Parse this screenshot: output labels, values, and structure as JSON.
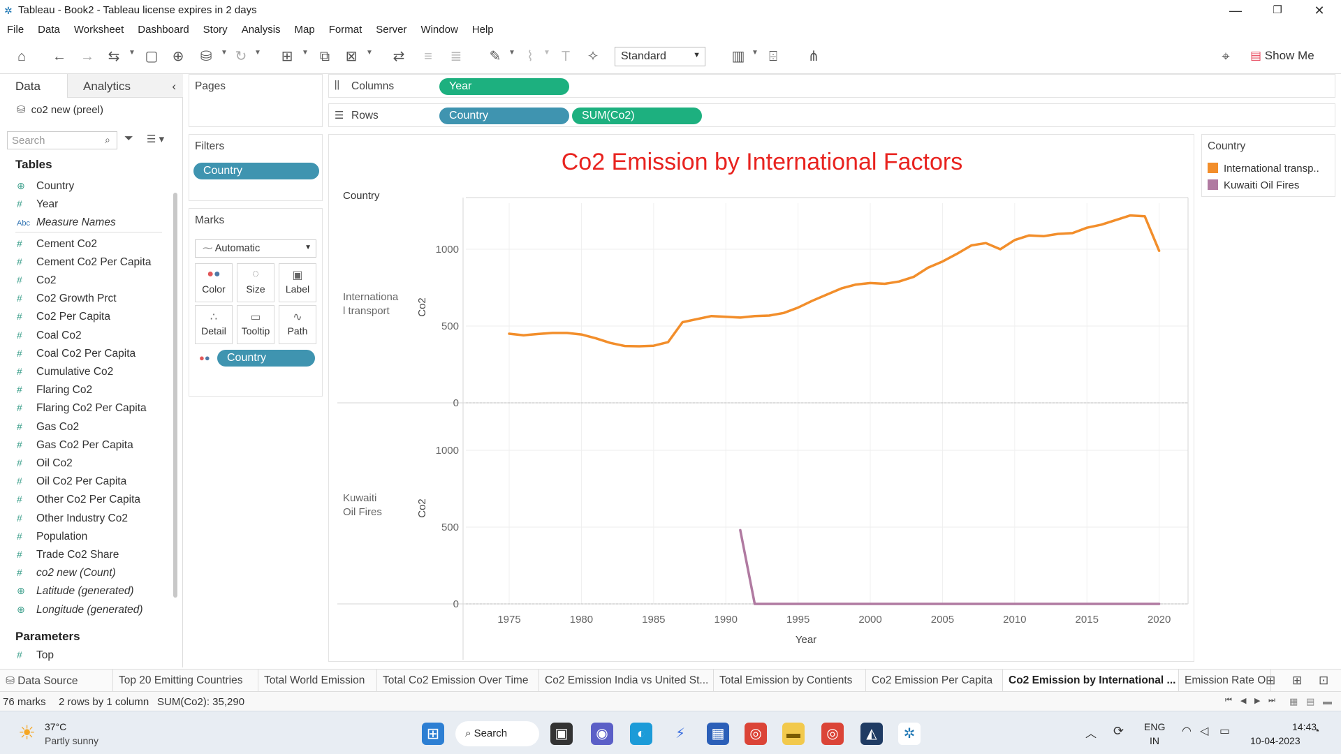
{
  "window": {
    "title": "Tableau - Book2 - Tableau license expires in 2 days",
    "app_icon": "tableau-icon",
    "controls": [
      "minimize-icon",
      "maximize-icon",
      "close-icon"
    ]
  },
  "menu": [
    "File",
    "Data",
    "Worksheet",
    "Dashboard",
    "Story",
    "Analysis",
    "Map",
    "Format",
    "Server",
    "Window",
    "Help"
  ],
  "toolbar": {
    "fit_value": "Standard",
    "show_me_label": "Show Me"
  },
  "data_pane": {
    "tab_data": "Data",
    "tab_analytics": "Analytics",
    "datasource": "co2 new (preel)",
    "search_placeholder": "Search",
    "tables_label": "Tables",
    "fields": [
      {
        "name": "Country",
        "icon": "globe"
      },
      {
        "name": "Year",
        "icon": "hash"
      },
      {
        "name": "Measure Names",
        "icon": "abc"
      },
      {
        "name": "Cement Co2",
        "icon": "hash"
      },
      {
        "name": "Cement Co2 Per Capita",
        "icon": "hash"
      },
      {
        "name": "Co2",
        "icon": "hash"
      },
      {
        "name": "Co2 Growth Prct",
        "icon": "hash"
      },
      {
        "name": "Co2 Per Capita",
        "icon": "hash"
      },
      {
        "name": "Coal Co2",
        "icon": "hash"
      },
      {
        "name": "Coal Co2 Per Capita",
        "icon": "hash"
      },
      {
        "name": "Cumulative Co2",
        "icon": "hash"
      },
      {
        "name": "Flaring Co2",
        "icon": "hash"
      },
      {
        "name": "Flaring Co2 Per Capita",
        "icon": "hash"
      },
      {
        "name": "Gas Co2",
        "icon": "hash"
      },
      {
        "name": "Gas Co2 Per Capita",
        "icon": "hash"
      },
      {
        "name": "Oil Co2",
        "icon": "hash"
      },
      {
        "name": "Oil Co2 Per Capita",
        "icon": "hash"
      },
      {
        "name": "Other Co2 Per Capita",
        "icon": "hash"
      },
      {
        "name": "Other Industry Co2",
        "icon": "hash"
      },
      {
        "name": "Population",
        "icon": "hash"
      },
      {
        "name": "Trade Co2 Share",
        "icon": "hash"
      },
      {
        "name": "co2 new (Count)",
        "icon": "hash"
      },
      {
        "name": "Latitude (generated)",
        "icon": "globe"
      },
      {
        "name": "Longitude (generated)",
        "icon": "globe"
      }
    ],
    "parameters_label": "Parameters",
    "parameters": [
      {
        "name": "Top",
        "icon": "hash"
      }
    ]
  },
  "shelves": {
    "pages_label": "Pages",
    "filters_label": "Filters",
    "filter_pill": "Country",
    "marks_label": "Marks",
    "mark_type": "Automatic",
    "mark_buttons": [
      "Color",
      "Size",
      "Label",
      "Detail",
      "Tooltip",
      "Path"
    ],
    "marks_pill": "Country",
    "columns_label": "Columns",
    "columns_pill": "Year",
    "rows_label": "Rows",
    "rows_pills": [
      "Country",
      "SUM(Co2)"
    ]
  },
  "legend": {
    "title": "Country",
    "items": [
      {
        "label": "International transp..",
        "color": "#f28e2b"
      },
      {
        "label": "Kuwaiti Oil Fires",
        "color": "#b07aa1"
      }
    ]
  },
  "chart_data": {
    "type": "line",
    "title": "Co2 Emission by International Factors",
    "header_label": "Country",
    "xlabel": "Year",
    "ylabel": "Co2",
    "xlim": [
      1972,
      2022
    ],
    "x_ticks": [
      1975,
      1980,
      1985,
      1990,
      1995,
      2000,
      2005,
      2010,
      2015,
      2020
    ],
    "ylim": [
      0,
      1300
    ],
    "y_ticks": [
      0,
      500,
      1000
    ],
    "grid": true,
    "legend_position": "right",
    "panels": [
      {
        "name": "International transport",
        "row_label": "Internationa l transport",
        "color": "#f28e2b",
        "x": [
          1975,
          1976,
          1977,
          1978,
          1979,
          1980,
          1981,
          1982,
          1983,
          1984,
          1985,
          1986,
          1987,
          1988,
          1989,
          1990,
          1991,
          1992,
          1993,
          1994,
          1995,
          1996,
          1997,
          1998,
          1999,
          2000,
          2001,
          2002,
          2003,
          2004,
          2005,
          2006,
          2007,
          2008,
          2009,
          2010,
          2011,
          2012,
          2013,
          2014,
          2015,
          2016,
          2017,
          2018,
          2019,
          2020
        ],
        "y": [
          450,
          440,
          448,
          455,
          455,
          445,
          420,
          390,
          370,
          368,
          372,
          395,
          525,
          545,
          565,
          560,
          555,
          565,
          568,
          585,
          620,
          665,
          705,
          745,
          770,
          780,
          775,
          790,
          820,
          880,
          920,
          970,
          1025,
          1040,
          1000,
          1060,
          1090,
          1085,
          1100,
          1105,
          1140,
          1160,
          1190,
          1220,
          1215,
          990
        ]
      },
      {
        "name": "Kuwaiti Oil Fires",
        "row_label": "Kuwaiti Oil Fires",
        "color": "#b07aa1",
        "x": [
          1991,
          1992,
          1993,
          1995,
          2000,
          2005,
          2010,
          2015,
          2020
        ],
        "y": [
          480,
          0,
          0,
          0,
          0,
          0,
          0,
          0,
          0
        ]
      }
    ]
  },
  "sheet_tabs": {
    "data_source": "Data Source",
    "tabs": [
      "Top 20 Emitting Countries",
      "Total World Emission",
      "Total Co2 Emission Over Time",
      "Co2 Emission India vs United St...",
      "Total Emission by Contients",
      "Co2 Emission Per Capita",
      "Co2 Emission by International ...",
      "Emission Rate O"
    ],
    "active_index": 6
  },
  "status": {
    "marks": "76 marks",
    "dims": "2 rows by 1 column",
    "sum": "SUM(Co2): 35,290"
  },
  "taskbar": {
    "weather_temp": "37°C",
    "weather_desc": "Partly sunny",
    "search_label": "Search",
    "lang_top": "ENG",
    "lang_bottom": "IN",
    "time": "14:43",
    "date": "10-04-2023"
  }
}
